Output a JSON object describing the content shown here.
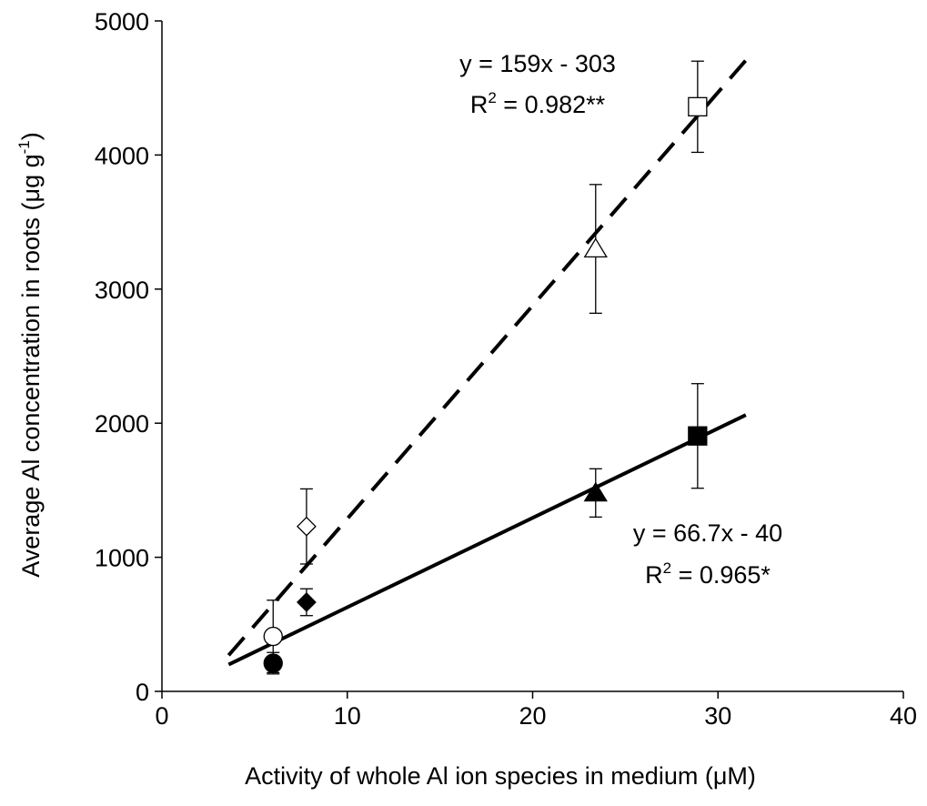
{
  "chart_data": {
    "type": "scatter",
    "xlabel": "Activity of whole  Al ion  species in medium (μM)",
    "ylabel_main": "Average Al concentration in roots (μg g",
    "ylabel_sup": "-1",
    "ylabel_close": ")",
    "xlim": [
      0,
      40
    ],
    "ylim": [
      0,
      5000
    ],
    "x_ticks": [
      0,
      10,
      20,
      30,
      40
    ],
    "y_ticks": [
      0,
      1000,
      2000,
      3000,
      4000,
      5000
    ],
    "x_tick_labels": [
      "0",
      "10",
      "20",
      "30",
      "40"
    ],
    "y_tick_labels": [
      "0",
      "1000",
      "2000",
      "3000",
      "4000",
      "5000"
    ],
    "grid": false,
    "series": [
      {
        "marker_fill": "white",
        "line_style": "dashed",
        "points": [
          {
            "x": 6.0,
            "y": 410,
            "err": 270,
            "marker": "circle"
          },
          {
            "x": 7.8,
            "y": 1230,
            "err": 280,
            "marker": "diamond"
          },
          {
            "x": 23.4,
            "y": 3300,
            "err": 480,
            "marker": "triangle"
          },
          {
            "x": 28.9,
            "y": 4360,
            "err": 340,
            "marker": "square"
          }
        ],
        "fit": {
          "slope": 159,
          "intercept": -303,
          "x_range": [
            3.6,
            31.5
          ]
        },
        "equation": "y = 159x - 303",
        "r2_prefix": "R",
        "r2_sup": "2",
        "r2_suffix": " = 0.982**"
      },
      {
        "marker_fill": "black",
        "line_style": "solid",
        "points": [
          {
            "x": 6.0,
            "y": 210,
            "err": 80,
            "marker": "circle"
          },
          {
            "x": 7.8,
            "y": 665,
            "err": 100,
            "marker": "diamond"
          },
          {
            "x": 23.4,
            "y": 1480,
            "err": 180,
            "marker": "triangle"
          },
          {
            "x": 28.9,
            "y": 1905,
            "err": 390,
            "marker": "square"
          }
        ],
        "fit": {
          "slope": 66.7,
          "intercept": -40,
          "x_range": [
            3.6,
            31.5
          ]
        },
        "equation": "y = 66.7x - 40",
        "r2_prefix": "R",
        "r2_sup": "2",
        "r2_suffix": " = 0.965*"
      }
    ]
  }
}
